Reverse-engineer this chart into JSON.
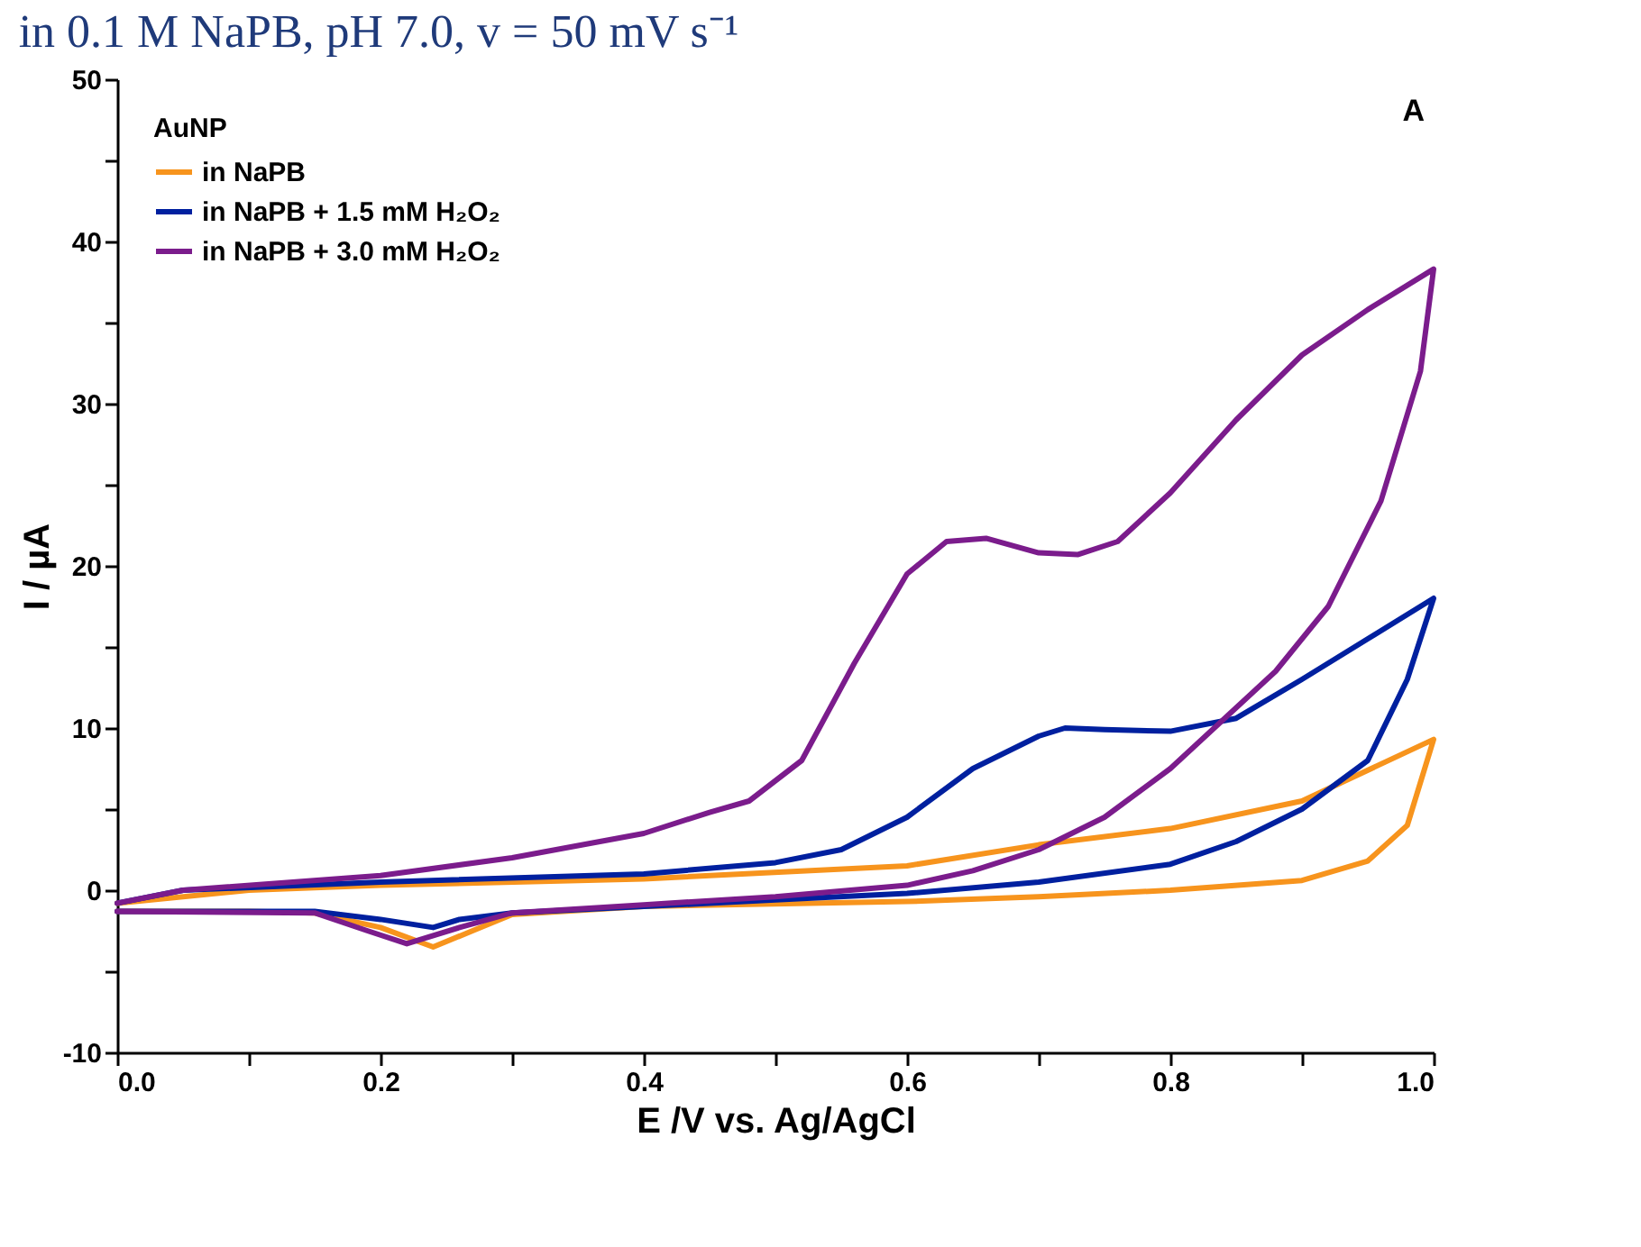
{
  "chart_data": {
    "type": "line",
    "title": "in 0.1 M NaPB, pH 7.0, v = 50 mV s⁻¹",
    "xlabel": "E /V vs. Ag/AgCl",
    "ylabel": "I / µA",
    "legend_title": "AuNP",
    "annotations": [
      "A"
    ],
    "xlim": [
      0,
      1
    ],
    "ylim": [
      -10,
      50
    ],
    "xticks": [
      {
        "value": 0,
        "label": "0.0"
      },
      {
        "value": 0.1,
        "label": null
      },
      0.2,
      {
        "value": 0.3,
        "label": null
      },
      0.4,
      {
        "value": 0.5,
        "label": null
      },
      0.6,
      {
        "value": 0.7,
        "label": null
      },
      0.8,
      {
        "value": 0.9,
        "label": null
      },
      {
        "value": 1,
        "label": "1.0"
      }
    ],
    "yticks": [
      -10,
      {
        "value": -5,
        "label": null
      },
      0,
      {
        "value": 5,
        "label": null
      },
      10,
      {
        "value": 15,
        "label": null
      },
      20,
      {
        "value": 25,
        "label": null
      },
      30,
      {
        "value": 35,
        "label": null
      },
      40,
      {
        "value": 45,
        "label": null
      },
      50
    ],
    "grid": false,
    "legend": "top left",
    "line_style": "solid",
    "marker": "none",
    "series": [
      {
        "name": "in NaPB",
        "color": "#f7941d",
        "x": [
          0,
          0.1,
          0.2,
          0.4,
          0.6,
          0.7,
          0.8,
          0.9,
          1.0,
          0.98,
          0.95,
          0.9,
          0.8,
          0.7,
          0.6,
          0.4,
          0.3,
          0.27,
          0.24,
          0.2,
          0.15,
          0.1,
          0
        ],
        "values": [
          -0.8,
          0,
          0.3,
          0.7,
          1.5,
          2.8,
          3.8,
          5.5,
          9.3,
          4,
          1.8,
          0.6,
          0,
          -0.4,
          -0.7,
          -1,
          -1.5,
          -2.5,
          -3.5,
          -2.3,
          -1.4,
          -1.3,
          -1.3
        ]
      },
      {
        "name": "in NaPB + 1.5 mM H₂O₂",
        "color": "#00209f",
        "x": [
          0,
          0.05,
          0.2,
          0.4,
          0.5,
          0.55,
          0.6,
          0.65,
          0.7,
          0.72,
          0.75,
          0.8,
          0.85,
          0.9,
          0.95,
          1.0,
          0.98,
          0.95,
          0.9,
          0.85,
          0.8,
          0.7,
          0.6,
          0.5,
          0.4,
          0.3,
          0.26,
          0.24,
          0.2,
          0.15,
          0
        ],
        "values": [
          -0.8,
          0,
          0.5,
          1.0,
          1.7,
          2.5,
          4.5,
          7.5,
          9.5,
          10,
          9.9,
          9.8,
          10.6,
          13,
          15.5,
          18,
          13,
          8,
          5,
          3,
          1.6,
          0.5,
          -0.2,
          -0.6,
          -1,
          -1.4,
          -1.8,
          -2.3,
          -1.8,
          -1.3,
          -1.3
        ]
      },
      {
        "name": "in NaPB + 3.0 mM H₂O₂",
        "color": "#7b1c8c",
        "x": [
          0,
          0.05,
          0.2,
          0.3,
          0.4,
          0.45,
          0.48,
          0.52,
          0.56,
          0.6,
          0.63,
          0.66,
          0.7,
          0.73,
          0.76,
          0.8,
          0.85,
          0.9,
          0.95,
          1.0,
          0.99,
          0.96,
          0.92,
          0.88,
          0.8,
          0.75,
          0.7,
          0.65,
          0.6,
          0.5,
          0.4,
          0.3,
          0.26,
          0.22,
          0.19,
          0.15,
          0
        ],
        "values": [
          -0.8,
          0,
          0.9,
          2,
          3.5,
          4.8,
          5.5,
          8,
          14,
          19.5,
          21.5,
          21.7,
          20.8,
          20.7,
          21.5,
          24.5,
          29,
          33,
          35.8,
          38.3,
          32,
          24,
          17.5,
          13.5,
          7.5,
          4.5,
          2.5,
          1.2,
          0.3,
          -0.4,
          -0.9,
          -1.4,
          -2.3,
          -3.3,
          -2.5,
          -1.4,
          -1.3
        ]
      }
    ]
  }
}
